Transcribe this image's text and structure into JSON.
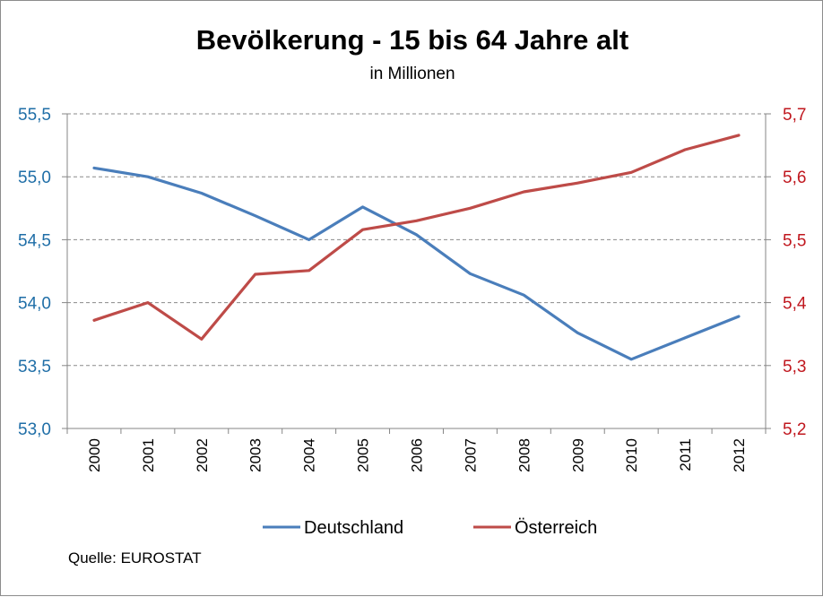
{
  "chart_data": {
    "type": "line",
    "title": "Bevölkerung - 15 bis 64 Jahre alt",
    "subtitle": "in Millionen",
    "categories": [
      "2000",
      "2001",
      "2002",
      "2003",
      "2004",
      "2005",
      "2006",
      "2007",
      "2008",
      "2009",
      "2010",
      "2011",
      "2012"
    ],
    "series": [
      {
        "name": "Deutschland",
        "axis": "left",
        "color": "#4a7ebb",
        "values": [
          55.07,
          55.0,
          54.87,
          54.69,
          54.5,
          54.76,
          54.54,
          54.23,
          54.06,
          53.76,
          53.55,
          53.72,
          53.89
        ]
      },
      {
        "name": "Österreich",
        "axis": "right",
        "color": "#be4b48",
        "values": [
          5.372,
          5.4,
          5.342,
          5.445,
          5.451,
          5.516,
          5.53,
          5.55,
          5.576,
          5.59,
          5.607,
          5.643,
          5.666
        ]
      }
    ],
    "y_left": {
      "range": [
        53.0,
        55.5
      ],
      "ticks": [
        "53,0",
        "53,5",
        "54,0",
        "54,5",
        "55,0",
        "55,5"
      ],
      "color": "#1f6ea7"
    },
    "y_right": {
      "range": [
        5.2,
        5.7
      ],
      "ticks": [
        "5,2",
        "5,3",
        "5,4",
        "5,5",
        "5,6",
        "5,7"
      ],
      "color": "#c0171e"
    },
    "grid": true,
    "legend": "bottom"
  },
  "source": "Quelle:  EUROSTAT"
}
